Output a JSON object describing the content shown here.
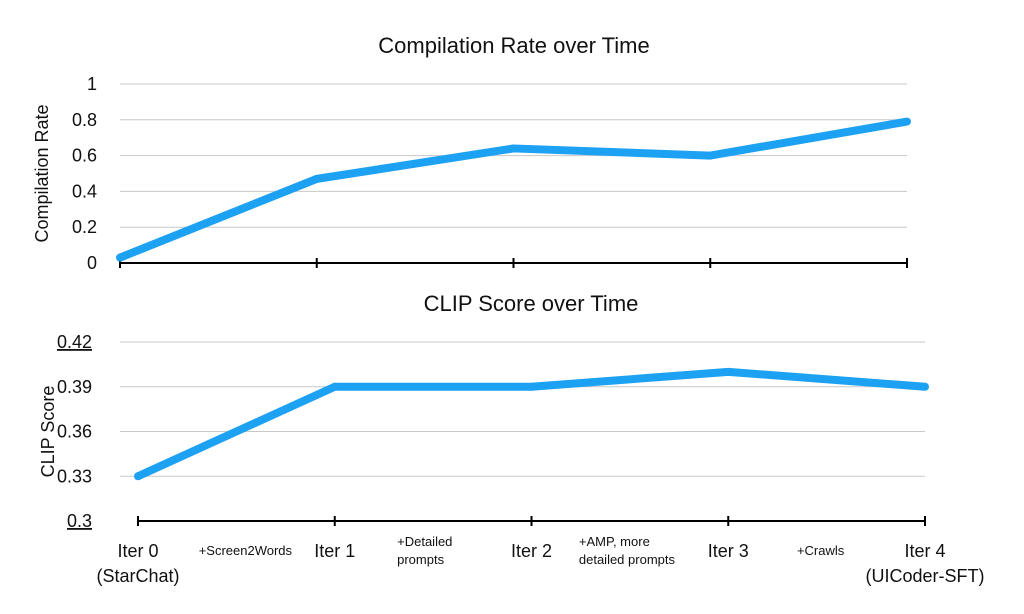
{
  "colors": {
    "line": "#1da1f2",
    "grid": "#c8c8c8",
    "axis": "#000000",
    "text": "#111111"
  },
  "iter_labels": [
    {
      "line1": "Iter 0",
      "line2": "(StarChat)"
    },
    {
      "line1": "Iter 1",
      "line2": ""
    },
    {
      "line1": "Iter 2",
      "line2": ""
    },
    {
      "line1": "Iter 3",
      "line2": ""
    },
    {
      "line1": "Iter 4",
      "line2": "(UICoder-SFT)"
    }
  ],
  "step_notes": [
    {
      "line1": "+Screen2Words",
      "line2": ""
    },
    {
      "line1": "+Detailed",
      "line2": "prompts"
    },
    {
      "line1": "+AMP, more",
      "line2": "detailed prompts"
    },
    {
      "line1": "+Crawls",
      "line2": ""
    }
  ],
  "chart_data": [
    {
      "type": "line",
      "title": "Compilation Rate over Time",
      "ylabel": "Compilation Rate",
      "xlabel": "",
      "categories": [
        "Iter 0",
        "Iter 1",
        "Iter 2",
        "Iter 3",
        "Iter 4"
      ],
      "values": [
        0.03,
        0.47,
        0.64,
        0.6,
        0.79
      ],
      "ylim": [
        0,
        1
      ],
      "yticks": [
        0,
        0.2,
        0.4,
        0.6,
        0.8,
        1
      ],
      "ytick_labels": [
        "0",
        "0.2",
        "0.4",
        "0.6",
        "0.8",
        "1"
      ],
      "grid": true,
      "legend": "none"
    },
    {
      "type": "line",
      "title": "CLIP Score over Time",
      "ylabel": "CLIP Score",
      "xlabel": "",
      "categories": [
        "Iter 0",
        "Iter 1",
        "Iter 2",
        "Iter 3",
        "Iter 4"
      ],
      "values": [
        0.33,
        0.39,
        0.39,
        0.4,
        0.39
      ],
      "ylim": [
        0.3,
        0.42
      ],
      "yticks": [
        0.3,
        0.33,
        0.36,
        0.39,
        0.42
      ],
      "ytick_labels": [
        "0.3",
        "0.33",
        "0.36",
        "0.39",
        "0.42"
      ],
      "grid": true,
      "legend": "none"
    }
  ]
}
